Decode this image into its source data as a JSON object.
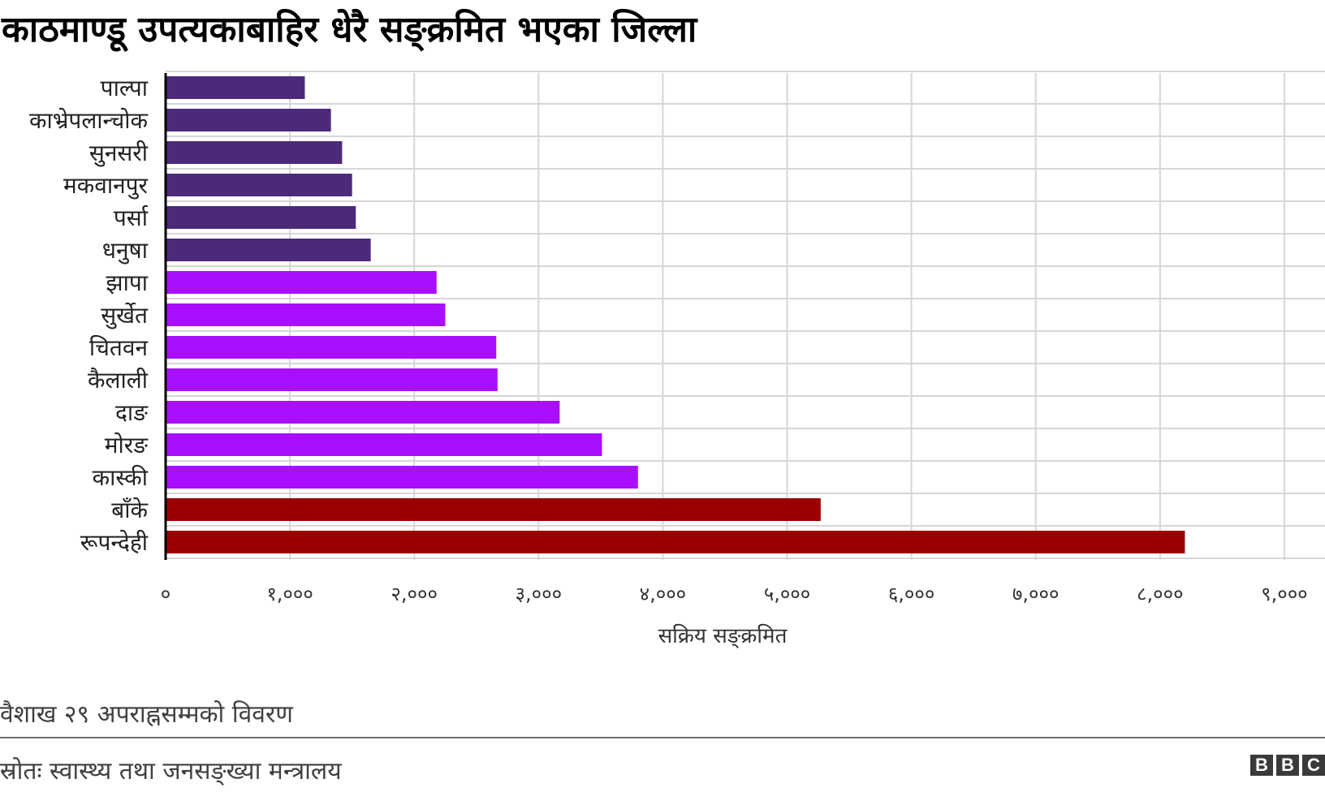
{
  "title": "काठमाण्डू उपत्यकाबाहिर धेरै सङ्क्रमित भएका जिल्ला",
  "note": "वैशाख २९ अपराह्नसम्मको विवरण",
  "source": "स्रोतः स्वास्थ्य तथा जनसङ्ख्या मन्त्रालय",
  "logo": [
    "B",
    "B",
    "C"
  ],
  "colors": {
    "dark_purple": "#4b2a7a",
    "purple": "#aa0eff",
    "dark_red": "#9b0000",
    "grid": "#d6d6d6",
    "axis": "#000000"
  },
  "chart_data": {
    "type": "bar",
    "orientation": "horizontal",
    "categories": [
      "पाल्पा",
      "काभ्रेपलान्चोक",
      "सुनसरी",
      "मकवानपुर",
      "पर्सा",
      "धनुषा",
      "झापा",
      "सुर्खेत",
      "चितवन",
      "कैलाली",
      "दाङ",
      "मोरङ",
      "कास्की",
      "बाँके",
      "रूपन्देही"
    ],
    "values": [
      1120,
      1330,
      1420,
      1500,
      1530,
      1650,
      2180,
      2250,
      2660,
      2670,
      3170,
      3510,
      3800,
      5270,
      8200
    ],
    "bar_colors": [
      "#4b2a7a",
      "#4b2a7a",
      "#4b2a7a",
      "#4b2a7a",
      "#4b2a7a",
      "#4b2a7a",
      "#aa0eff",
      "#aa0eff",
      "#aa0eff",
      "#aa0eff",
      "#aa0eff",
      "#aa0eff",
      "#aa0eff",
      "#9b0000",
      "#9b0000"
    ],
    "xlabel": "सक्रिय सङ्क्रमित",
    "xlim": [
      0,
      9000
    ],
    "xticks": [
      0,
      1000,
      2000,
      3000,
      4000,
      5000,
      6000,
      7000,
      8000,
      9000
    ],
    "xtick_labels": [
      "०",
      "१,०००",
      "२,०००",
      "३,०००",
      "४,०००",
      "५,०००",
      "६,०००",
      "७,०००",
      "८,०००",
      "९,०००"
    ],
    "grid": true
  }
}
